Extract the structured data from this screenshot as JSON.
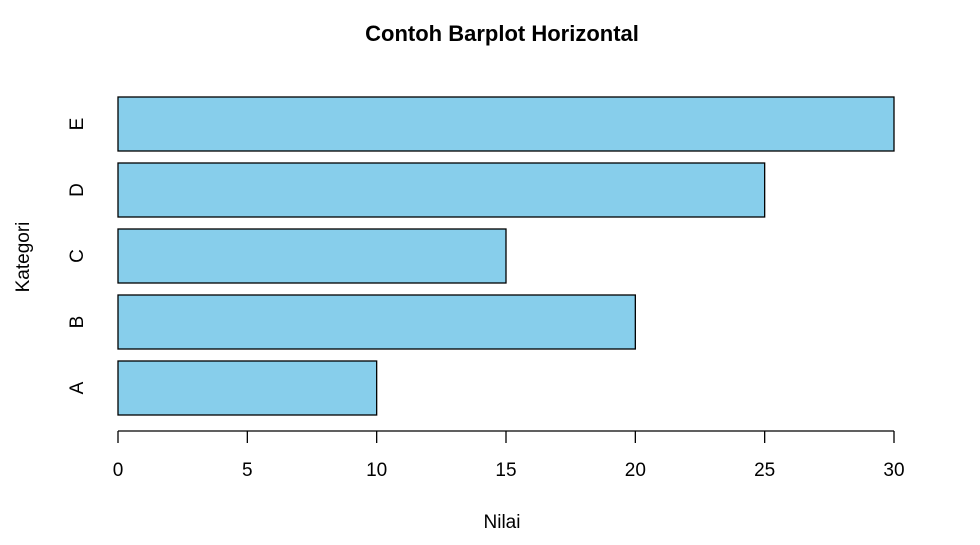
{
  "chart_data": {
    "type": "bar",
    "orientation": "horizontal",
    "title": "Contoh Barplot Horizontal",
    "xlabel": "Nilai",
    "ylabel": "Kategori",
    "categories": [
      "A",
      "B",
      "C",
      "D",
      "E"
    ],
    "values": [
      10,
      20,
      15,
      25,
      30
    ],
    "xlim": [
      0,
      30
    ],
    "x_ticks": [
      0,
      5,
      10,
      15,
      20,
      25,
      30
    ],
    "bar_color": "#87CEEB",
    "bar_border_color": "#000000",
    "grid": false
  }
}
